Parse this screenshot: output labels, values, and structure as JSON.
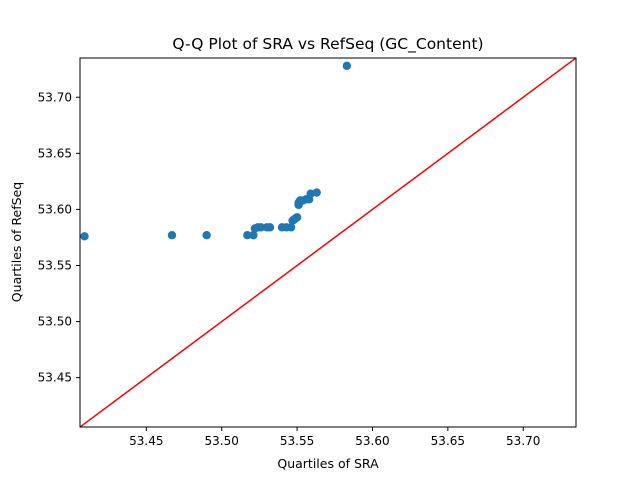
{
  "chart_data": {
    "type": "scatter",
    "title": "Q-Q Plot of SRA vs RefSeq (GC_Content)",
    "xlabel": "Quartiles of SRA",
    "ylabel": "Quartiles of RefSeq",
    "xlim": [
      53.406,
      53.735
    ],
    "ylim": [
      53.406,
      53.735
    ],
    "xticks": [
      "53.45",
      "53.50",
      "53.55",
      "53.60",
      "53.65",
      "53.70"
    ],
    "yticks": [
      "53.45",
      "53.50",
      "53.55",
      "53.60",
      "53.65",
      "53.70"
    ],
    "grid": false,
    "legend": "none",
    "series": [
      {
        "marker_color": "#1f77b4",
        "points": [
          [
            53.409,
            53.576
          ],
          [
            53.467,
            53.577
          ],
          [
            53.49,
            53.577
          ],
          [
            53.517,
            53.577
          ],
          [
            53.521,
            53.577
          ],
          [
            53.522,
            53.583
          ],
          [
            53.524,
            53.584
          ],
          [
            53.526,
            53.584
          ],
          [
            53.53,
            53.584
          ],
          [
            53.532,
            53.584
          ],
          [
            53.54,
            53.584
          ],
          [
            53.543,
            53.584
          ],
          [
            53.546,
            53.584
          ],
          [
            53.547,
            53.59
          ],
          [
            53.548,
            53.591
          ],
          [
            53.549,
            53.592
          ],
          [
            53.55,
            53.593
          ],
          [
            53.551,
            53.604
          ],
          [
            53.551,
            53.606
          ],
          [
            53.552,
            53.608
          ],
          [
            53.554,
            53.608
          ],
          [
            53.556,
            53.609
          ],
          [
            53.558,
            53.609
          ],
          [
            53.559,
            53.614
          ],
          [
            53.563,
            53.615
          ],
          [
            53.583,
            53.728
          ]
        ]
      }
    ],
    "reference_line": {
      "points": [
        [
          53.406,
          53.406
        ],
        [
          53.735,
          53.735
        ]
      ],
      "color": "#ff0000"
    }
  }
}
